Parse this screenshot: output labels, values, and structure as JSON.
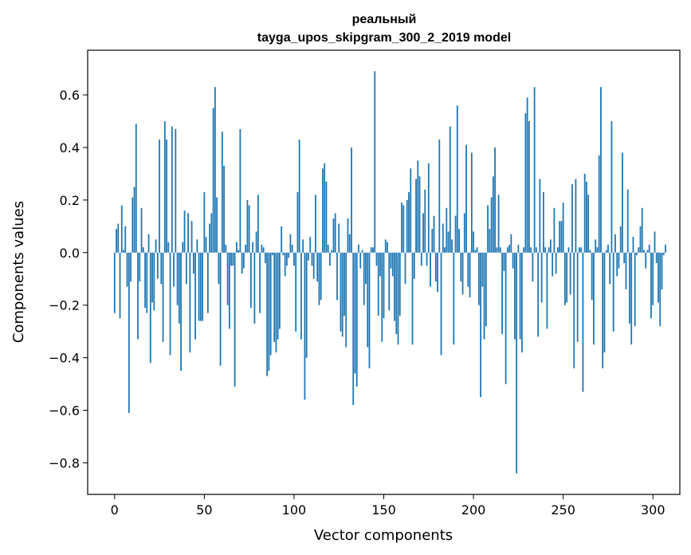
{
  "chart_data": {
    "type": "bar",
    "title": "реальный",
    "subtitle": "tayga_upos_skipgram_300_2_2019 model",
    "xlabel": "Vector components",
    "ylabel": "Components values",
    "xlim": [
      -15,
      315
    ],
    "ylim": [
      -0.92,
      0.77
    ],
    "xticks": [
      0,
      50,
      100,
      150,
      200,
      250,
      300
    ],
    "yticks": [
      -0.8,
      -0.6,
      -0.4,
      -0.2,
      0.0,
      0.2,
      0.4,
      0.6
    ],
    "ytick_labels": [
      "−0.8",
      "−0.6",
      "−0.4",
      "−0.2",
      "0.0",
      "0.2",
      "0.4",
      "0.6"
    ],
    "grid": false,
    "bar_color": "#1f77b4",
    "x_start": 0,
    "values": [
      -0.23,
      0.09,
      0.11,
      -0.25,
      0.18,
      0.01,
      0.1,
      -0.13,
      -0.61,
      -0.11,
      0.21,
      0.25,
      0.49,
      -0.33,
      -0.11,
      0.17,
      0.02,
      -0.21,
      -0.23,
      0.07,
      -0.42,
      -0.19,
      -0.22,
      0.05,
      -0.1,
      0.43,
      -0.12,
      -0.34,
      0.5,
      0.43,
      0.04,
      -0.39,
      0.48,
      -0.13,
      0.47,
      -0.2,
      -0.27,
      -0.45,
      0.04,
      0.16,
      -0.12,
      0.15,
      -0.38,
      0.12,
      -0.08,
      -0.33,
      0.05,
      -0.26,
      -0.26,
      -0.26,
      0.23,
      0.06,
      -0.23,
      0.11,
      0.15,
      0.55,
      0.63,
      0.21,
      -0.12,
      -0.43,
      0.46,
      0.33,
      0.03,
      -0.2,
      -0.29,
      -0.05,
      -0.05,
      -0.51,
      0.04,
      0.01,
      0.47,
      -0.08,
      -0.06,
      0.03,
      0.2,
      0.18,
      -0.21,
      0.04,
      -0.27,
      0.08,
      0.22,
      -0.23,
      0.03,
      0.02,
      -0.04,
      -0.47,
      -0.45,
      -0.39,
      -0.01,
      -0.34,
      -0.38,
      -0.33,
      -0.29,
      0.1,
      -0.01,
      -0.09,
      -0.05,
      -0.02,
      0.07,
      0.03,
      -0.05,
      -0.3,
      0.23,
      0.43,
      -0.33,
      0.05,
      -0.56,
      -0.4,
      -0.03,
      0.06,
      -0.05,
      -0.1,
      0.22,
      -0.11,
      -0.2,
      -0.18,
      0.32,
      0.34,
      0.27,
      0.03,
      -0.05,
      0.01,
      0.13,
      0.15,
      -0.18,
      0.11,
      -0.3,
      -0.32,
      -0.24,
      -0.36,
      0.13,
      0.07,
      0.4,
      -0.58,
      -0.46,
      -0.51,
      0.03,
      -0.06,
      0.01,
      -0.2,
      -0.12,
      -0.36,
      -0.44,
      0.02,
      0.02,
      0.69,
      -0.05,
      -0.24,
      -0.09,
      -0.34,
      -0.25,
      0.05,
      0.04,
      -0.22,
      -0.06,
      -0.09,
      -0.26,
      -0.31,
      -0.35,
      -0.24,
      0.19,
      0.18,
      -0.12,
      0.2,
      0.23,
      0.32,
      -0.35,
      -0.1,
      0.28,
      0.35,
      0.29,
      -0.05,
      0.15,
      0.24,
      -0.05,
      0.34,
      -0.13,
      0.09,
      0.14,
      -0.11,
      -0.15,
      0.43,
      -0.39,
      0.11,
      0.02,
      0.17,
      0.08,
      0.48,
      0.05,
      -0.35,
      0.14,
      0.56,
      0.09,
      -0.11,
      -0.16,
      0.15,
      0.41,
      -0.13,
      -0.17,
      0.38,
      0.08,
      0.01,
      0.02,
      -0.2,
      -0.55,
      -0.13,
      -0.33,
      -0.28,
      0.18,
      0.09,
      0.21,
      0.29,
      0.4,
      0.02,
      0.22,
      0.02,
      -0.31,
      -0.07,
      -0.5,
      0.02,
      0.03,
      0.07,
      -0.06,
      -0.33,
      -0.84,
      0.03,
      -0.33,
      -0.38,
      0.02,
      0.53,
      0.59,
      0.5,
      0.02,
      -0.11,
      0.63,
      0.02,
      -0.32,
      0.28,
      -0.19,
      0.23,
      0.02,
      -0.29,
      0.02,
      0.05,
      -0.09,
      0.17,
      -0.08,
      0.02,
      0.12,
      0.12,
      0.19,
      -0.2,
      -0.19,
      0.02,
      -0.16,
      0.26,
      -0.44,
      0.28,
      -0.34,
      0.02,
      0.02,
      -0.53,
      0.3,
      0.27,
      0.22,
      0.01,
      -0.18,
      -0.35,
      0.05,
      0.02,
      0.37,
      0.63,
      -0.44,
      -0.38,
      0.01,
      0.03,
      -0.12,
      0.5,
      -0.3,
      0.07,
      -0.09,
      -0.06,
      0.1,
      0.38,
      -0.04,
      -0.14,
      0.24,
      -0.27,
      -0.35,
      0.06,
      -0.28,
      -0.01,
      0.02,
      0.1,
      0.17,
      0.01,
      -0.06,
      0.01,
      0.03,
      -0.25,
      -0.2,
      0.08,
      -0.04,
      -0.19,
      -0.28,
      -0.14,
      -0.01,
      0.03
    ]
  }
}
